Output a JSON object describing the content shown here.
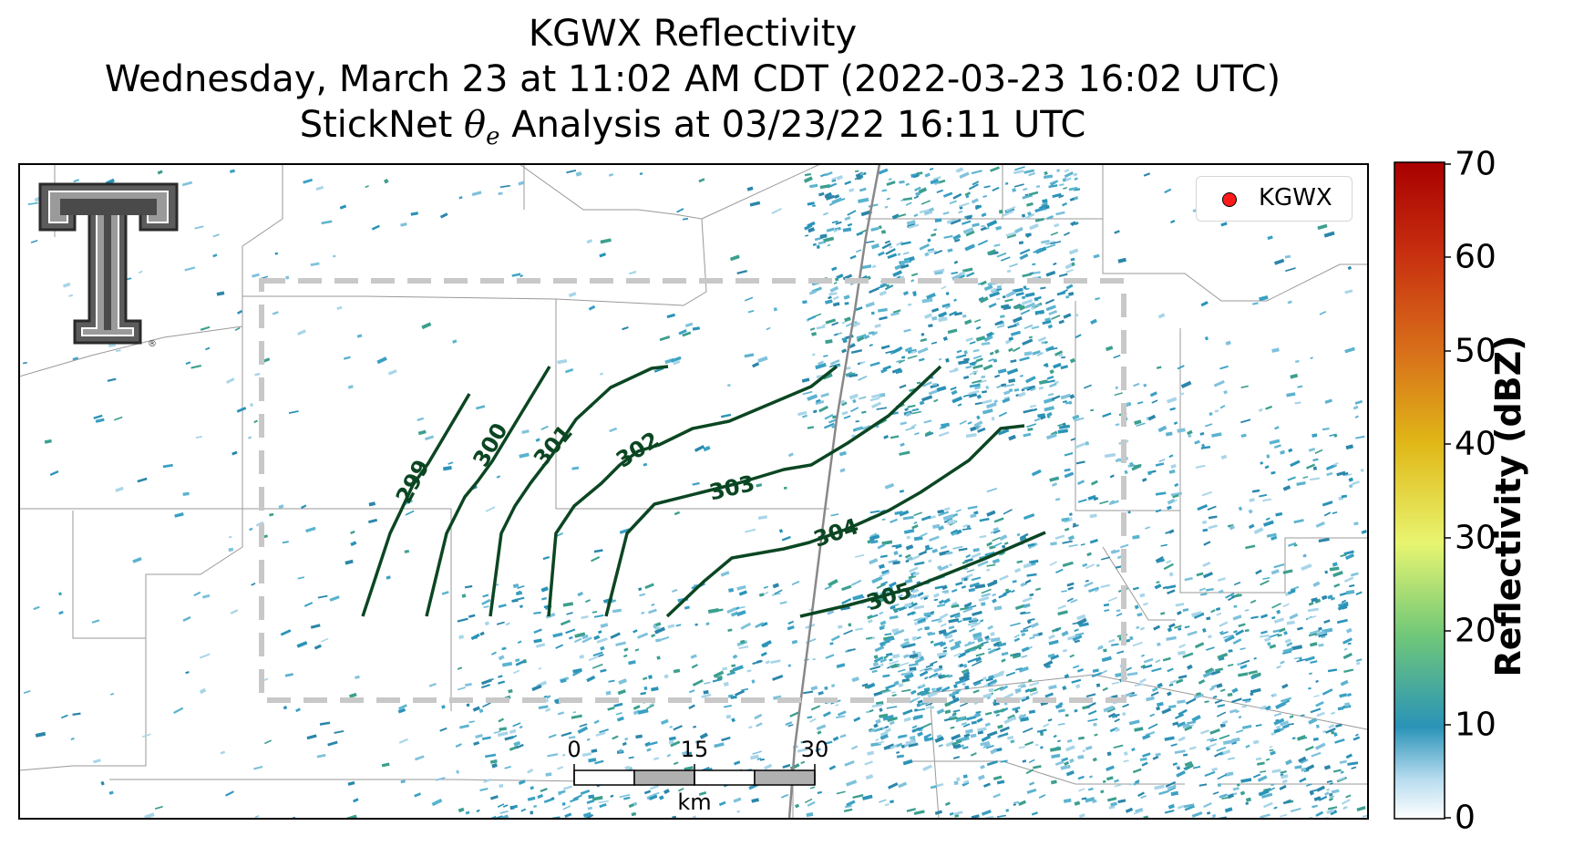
{
  "title": {
    "line1": "KGWX Reflectivity",
    "line2": "Wednesday, March 23 at 11:02 AM CDT (2022-03-23 16:02 UTC)",
    "line3_prefix": "StickNet ",
    "line3_symbol": "θ",
    "line3_subscript": "e",
    "line3_suffix": " Analysis at 03/23/22 16:11 UTC"
  },
  "legend": {
    "label": "KGWX",
    "marker_color": "#ff1a1a"
  },
  "colorbar": {
    "label": "Reflectivity (dBZ)",
    "ticks": [
      "70",
      "60",
      "50",
      "40",
      "30",
      "20",
      "10",
      "0"
    ],
    "colors": [
      "#b00000",
      "#d8501a",
      "#e0a010",
      "#f0e030",
      "#e8f570",
      "#70c878",
      "#2898b8",
      "#ffffff"
    ]
  },
  "scalebar": {
    "labels": [
      "0",
      "15",
      "30"
    ],
    "unit": "km"
  },
  "contour_labels": [
    "299",
    "300",
    "301",
    "302",
    "303",
    "304",
    "305"
  ],
  "colors": {
    "contour": "#0b4622",
    "analysis_box": "#cccccc",
    "echo": "#2a93b8"
  },
  "logo": "texas-tech-double-t-logo"
}
